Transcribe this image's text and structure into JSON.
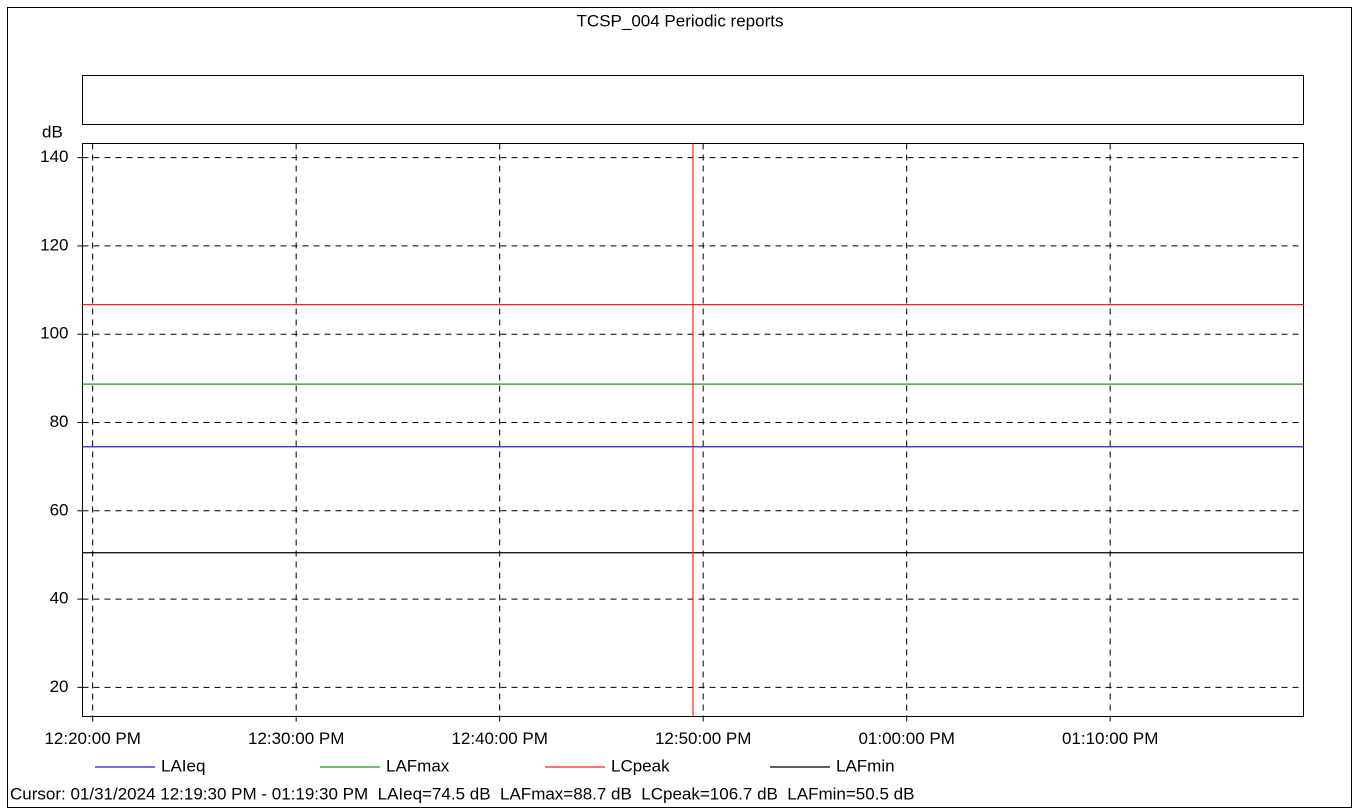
{
  "chart_data": {
    "type": "line",
    "title": "TCSP_004 Periodic reports",
    "y_label": "dB",
    "xlim": [
      "12:19:30 PM",
      "01:19:30 PM"
    ],
    "xticks": [
      "12:20:00 PM",
      "12:30:00 PM",
      "12:40:00 PM",
      "12:50:00 PM",
      "01:00:00 PM",
      "01:10:00 PM"
    ],
    "ylim": [
      13.4,
      143.2
    ],
    "yticks": [
      20,
      40,
      60,
      80,
      100,
      120,
      140
    ],
    "grid": true,
    "series": [
      {
        "name": "LAIeq",
        "color": "#1f1fd0",
        "x": [
          "12:19:30 PM",
          "01:19:30 PM"
        ],
        "values": [
          74.5,
          74.5
        ]
      },
      {
        "name": "LAFmax",
        "color": "#1a9a1a",
        "x": [
          "12:19:30 PM",
          "01:19:30 PM"
        ],
        "values": [
          88.7,
          88.7
        ]
      },
      {
        "name": "LCpeak",
        "color": "#ff2020",
        "x": [
          "12:19:30 PM",
          "01:19:30 PM"
        ],
        "values": [
          106.7,
          106.7
        ]
      },
      {
        "name": "LAFmin",
        "color": "#000000",
        "x": [
          "12:19:30 PM",
          "01:19:30 PM"
        ],
        "values": [
          50.5,
          50.5
        ]
      }
    ],
    "cursor": {
      "x": "12:49:30 PM",
      "color": "#ff2020"
    },
    "cursor_text": "Cursor: 01/31/2024 12:19:30 PM - 01:19:30 PM  LAIeq=74.5 dB  LAFmax=88.7 dB  LCpeak=106.7 dB  LAFmin=50.5 dB"
  }
}
